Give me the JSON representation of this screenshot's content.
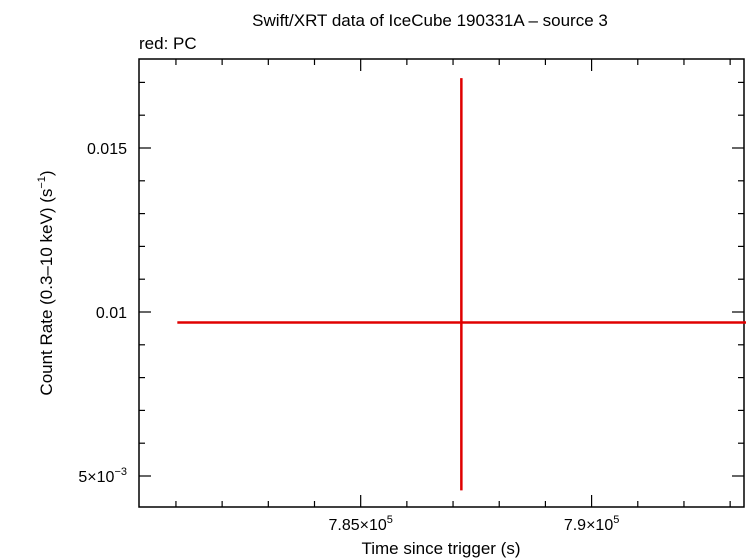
{
  "chart_data": {
    "type": "scatter",
    "title": "Swift/XRT data of IceCube 190331A – source 3",
    "subtitle": "red: PC",
    "xlabel": "Time since trigger (s)",
    "ylabel": "Count Rate (0.3–10 keV) (s",
    "ylabel_sup": "−1",
    "ylabel_end": ")",
    "xlim": [
      780200,
      793300
    ],
    "ylim": [
      4000,
      0.01745
    ],
    "grid": false,
    "x_ticks": [
      {
        "value": 785000,
        "mantissa": "7.85×10",
        "exp": "5"
      },
      {
        "value": 790000,
        "mantissa": "7.9×10",
        "exp": "5"
      }
    ],
    "y_ticks": [
      {
        "value": 0.015,
        "label": "0.015",
        "exp": ""
      },
      {
        "value": 0.01,
        "label": "0.01",
        "exp": ""
      },
      {
        "value": 0.005,
        "label": "5×10",
        "exp": "−3"
      }
    ],
    "series": [
      {
        "color": "#e00000",
        "points": [
          {
            "x": 787180,
            "y": 0.00968,
            "xerr": [
              6150,
              6200
            ],
            "yerr": [
              0.00512,
              0.00745
            ]
          }
        ]
      }
    ]
  }
}
